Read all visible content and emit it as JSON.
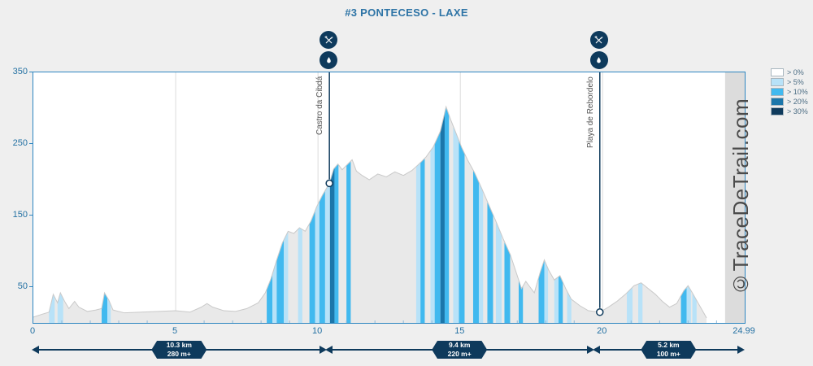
{
  "page": {
    "title": "#3 PONTECESO - LAXE",
    "watermark": "©TraceDeTrail.com"
  },
  "legend": {
    "items": [
      {
        "label": "> 0%",
        "color": "#ffffff"
      },
      {
        "label": "> 5%",
        "color": "#b8e2f8"
      },
      {
        "label": "> 10%",
        "color": "#41b9ef"
      },
      {
        "label": "> 20%",
        "color": "#1b76aa"
      },
      {
        "label": "> 30%",
        "color": "#0e3a5c"
      }
    ]
  },
  "axes": {
    "y_ticks": [
      {
        "value": 350
      },
      {
        "value": 250
      },
      {
        "value": 150
      },
      {
        "value": 50
      }
    ],
    "x_ticks": [
      {
        "km": 0,
        "label": "0"
      },
      {
        "km": 5,
        "label": "5"
      },
      {
        "km": 10,
        "label": "10"
      },
      {
        "km": 15,
        "label": "15"
      },
      {
        "km": 20,
        "label": "20"
      },
      {
        "km": 24.99,
        "label": "24.99"
      }
    ],
    "x_grid_km": [
      5,
      10,
      15,
      20
    ]
  },
  "waypoints": [
    {
      "km": 10.4,
      "elev": 195,
      "label": "Castro da Cibdá",
      "icons": [
        "restaurant-icon",
        "water-drop-icon"
      ]
    },
    {
      "km": 19.9,
      "elev": 15,
      "label": "Playa de Rebordelo",
      "icons": [
        "restaurant-icon",
        "water-drop-icon"
      ]
    }
  ],
  "segments": [
    {
      "from_km": 0,
      "to_km": 10.3,
      "distance": "10.3 km",
      "gain": "280 m+"
    },
    {
      "from_km": 10.3,
      "to_km": 19.7,
      "distance": "9.4 km",
      "gain": "220 m+"
    },
    {
      "from_km": 19.7,
      "to_km": 24.99,
      "distance": "5.2 km",
      "gain": "100 m+"
    }
  ],
  "colors": {
    "accent": "#2e86c1",
    "axis_text": "#2471a3",
    "marker": "#0e3a5c",
    "area_base": "#e9e9e9",
    "area_outline": "#c9c9c9",
    "end_shade": "#dcdcdc",
    "grid": "#dcdcdc",
    "bands": {
      "c5": "#b8e2f8",
      "c10": "#41b9ef",
      "c20": "#1b76aa",
      "c30": "#0e3a5c"
    }
  },
  "chart_data": {
    "type": "area",
    "title": "#3 PONTECESO - LAXE",
    "xlabel": "",
    "ylabel": "",
    "xlim": [
      0,
      24.99
    ],
    "ylim": [
      0,
      350
    ],
    "legend_position": "top-right",
    "grid": "vertical-only",
    "profile": [
      [
        0,
        8
      ],
      [
        0.3,
        12
      ],
      [
        0.55,
        15
      ],
      [
        0.7,
        40
      ],
      [
        0.85,
        28
      ],
      [
        0.95,
        42
      ],
      [
        1.1,
        30
      ],
      [
        1.25,
        20
      ],
      [
        1.45,
        30
      ],
      [
        1.6,
        22
      ],
      [
        1.9,
        16
      ],
      [
        2.2,
        18
      ],
      [
        2.4,
        20
      ],
      [
        2.5,
        42
      ],
      [
        2.65,
        32
      ],
      [
        2.8,
        18
      ],
      [
        3.2,
        14
      ],
      [
        3.8,
        15
      ],
      [
        4.4,
        16
      ],
      [
        5.0,
        17
      ],
      [
        5.5,
        15
      ],
      [
        5.9,
        22
      ],
      [
        6.1,
        27
      ],
      [
        6.3,
        22
      ],
      [
        6.7,
        17
      ],
      [
        7.1,
        16
      ],
      [
        7.5,
        20
      ],
      [
        7.9,
        28
      ],
      [
        8.15,
        42
      ],
      [
        8.35,
        62
      ],
      [
        8.55,
        88
      ],
      [
        8.75,
        112
      ],
      [
        8.95,
        128
      ],
      [
        9.15,
        125
      ],
      [
        9.35,
        133
      ],
      [
        9.55,
        128
      ],
      [
        9.75,
        142
      ],
      [
        9.95,
        162
      ],
      [
        10.15,
        178
      ],
      [
        10.4,
        195
      ],
      [
        10.55,
        215
      ],
      [
        10.7,
        222
      ],
      [
        10.85,
        214
      ],
      [
        11.05,
        222
      ],
      [
        11.2,
        228
      ],
      [
        11.35,
        212
      ],
      [
        11.55,
        206
      ],
      [
        11.8,
        200
      ],
      [
        12.1,
        208
      ],
      [
        12.4,
        204
      ],
      [
        12.7,
        211
      ],
      [
        13.0,
        206
      ],
      [
        13.3,
        213
      ],
      [
        13.55,
        222
      ],
      [
        13.8,
        232
      ],
      [
        14.05,
        246
      ],
      [
        14.3,
        268
      ],
      [
        14.5,
        302
      ],
      [
        14.65,
        285
      ],
      [
        14.85,
        265
      ],
      [
        15.05,
        245
      ],
      [
        15.25,
        228
      ],
      [
        15.5,
        210
      ],
      [
        15.75,
        188
      ],
      [
        16.0,
        165
      ],
      [
        16.25,
        142
      ],
      [
        16.5,
        118
      ],
      [
        16.75,
        96
      ],
      [
        16.95,
        72
      ],
      [
        17.15,
        48
      ],
      [
        17.3,
        58
      ],
      [
        17.45,
        50
      ],
      [
        17.6,
        42
      ],
      [
        17.8,
        70
      ],
      [
        17.95,
        88
      ],
      [
        18.1,
        74
      ],
      [
        18.3,
        60
      ],
      [
        18.5,
        66
      ],
      [
        18.7,
        48
      ],
      [
        18.9,
        33
      ],
      [
        19.2,
        24
      ],
      [
        19.5,
        17
      ],
      [
        19.9,
        15
      ],
      [
        20.2,
        22
      ],
      [
        20.5,
        30
      ],
      [
        20.8,
        40
      ],
      [
        21.1,
        52
      ],
      [
        21.35,
        56
      ],
      [
        21.6,
        48
      ],
      [
        21.85,
        40
      ],
      [
        22.1,
        30
      ],
      [
        22.35,
        22
      ],
      [
        22.6,
        27
      ],
      [
        22.85,
        45
      ],
      [
        23.0,
        52
      ],
      [
        23.15,
        42
      ],
      [
        23.35,
        28
      ],
      [
        23.55,
        14
      ],
      [
        23.65,
        7
      ]
    ],
    "slope_bands": [
      [
        0.55,
        0.75,
        "c5"
      ],
      [
        0.85,
        1.05,
        "c5"
      ],
      [
        2.4,
        2.6,
        "c10"
      ],
      [
        2.6,
        2.72,
        "c5"
      ],
      [
        8.2,
        8.4,
        "c10"
      ],
      [
        8.4,
        8.55,
        "c5"
      ],
      [
        8.55,
        8.8,
        "c10"
      ],
      [
        8.8,
        8.95,
        "c5"
      ],
      [
        9.3,
        9.45,
        "c5"
      ],
      [
        9.7,
        9.9,
        "c10"
      ],
      [
        9.9,
        10.05,
        "c5"
      ],
      [
        10.05,
        10.25,
        "c10"
      ],
      [
        10.25,
        10.42,
        "c5"
      ],
      [
        10.42,
        10.58,
        "c20"
      ],
      [
        10.58,
        10.72,
        "c10"
      ],
      [
        11.0,
        11.15,
        "c10"
      ],
      [
        13.45,
        13.6,
        "c5"
      ],
      [
        13.6,
        13.75,
        "c10"
      ],
      [
        13.95,
        14.1,
        "c5"
      ],
      [
        14.1,
        14.3,
        "c10"
      ],
      [
        14.3,
        14.45,
        "c20"
      ],
      [
        14.45,
        14.6,
        "c10"
      ],
      [
        14.75,
        14.95,
        "c5"
      ],
      [
        14.95,
        15.15,
        "c10"
      ],
      [
        15.45,
        15.65,
        "c10"
      ],
      [
        15.65,
        15.8,
        "c5"
      ],
      [
        15.95,
        16.15,
        "c10"
      ],
      [
        16.25,
        16.45,
        "c5"
      ],
      [
        16.55,
        16.75,
        "c10"
      ],
      [
        17.05,
        17.2,
        "c10"
      ],
      [
        17.75,
        17.95,
        "c10"
      ],
      [
        17.95,
        18.08,
        "c5"
      ],
      [
        18.3,
        18.45,
        "c5"
      ],
      [
        18.45,
        18.6,
        "c10"
      ],
      [
        18.75,
        18.9,
        "c5"
      ],
      [
        20.85,
        21.05,
        "c5"
      ],
      [
        21.25,
        21.4,
        "c5"
      ],
      [
        22.75,
        22.95,
        "c10"
      ],
      [
        22.95,
        23.1,
        "c5"
      ],
      [
        23.15,
        23.3,
        "c5"
      ]
    ],
    "end_shade_from_km": 24.3
  }
}
